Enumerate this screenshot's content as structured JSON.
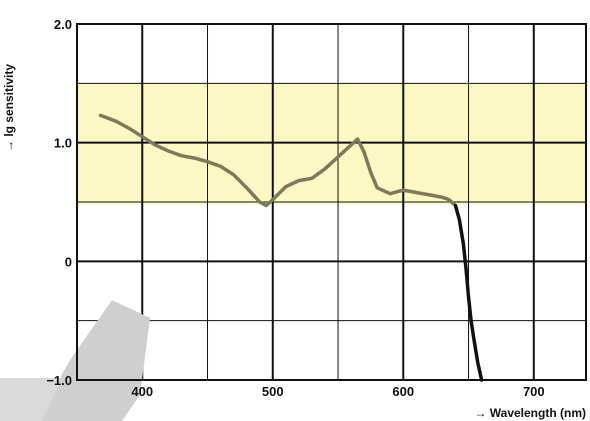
{
  "chart_data": {
    "type": "line",
    "title": "",
    "xlabel": "→ Wavelength (nm)",
    "ylabel": "→ lg sensitivity",
    "xlim": [
      350,
      740
    ],
    "ylim": [
      -1.0,
      2.0
    ],
    "x_ticks": [
      400,
      500,
      600,
      700
    ],
    "x_tick_labels": [
      "400",
      "500",
      "600",
      "700"
    ],
    "y_ticks": [
      2.0,
      1.0,
      0,
      -1.0
    ],
    "y_tick_labels": [
      "2.0",
      "1.0",
      "0",
      "−1.0"
    ],
    "grid": true,
    "highlight_band": {
      "y_from": 0.48,
      "y_to": 1.5,
      "color": "#fbf8c3"
    },
    "series": [
      {
        "color": "#7d7a5c",
        "x": [
          368,
          380,
          390,
          400,
          410,
          420,
          430,
          440,
          450,
          460,
          470,
          480,
          490,
          495,
          500,
          510,
          520,
          530,
          540,
          550,
          560,
          565,
          570,
          575,
          580,
          590,
          600,
          610,
          620,
          630,
          635,
          640
        ],
        "y": [
          1.23,
          1.18,
          1.12,
          1.05,
          0.98,
          0.93,
          0.89,
          0.87,
          0.84,
          0.8,
          0.73,
          0.62,
          0.5,
          0.47,
          0.52,
          0.63,
          0.68,
          0.7,
          0.78,
          0.88,
          0.98,
          1.03,
          0.92,
          0.75,
          0.62,
          0.57,
          0.6,
          0.58,
          0.56,
          0.54,
          0.52,
          0.47
        ]
      },
      {
        "color": "#111111",
        "x": [
          640,
          643,
          646,
          648,
          650,
          652,
          654,
          657,
          660
        ],
        "y": [
          0.47,
          0.35,
          0.15,
          -0.05,
          -0.3,
          -0.5,
          -0.65,
          -0.85,
          -1.0
        ]
      }
    ]
  }
}
